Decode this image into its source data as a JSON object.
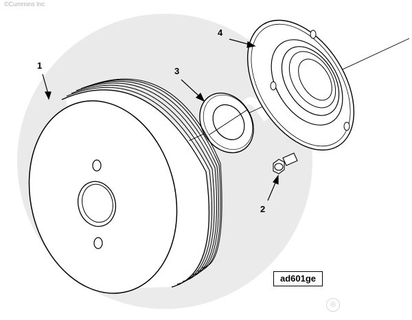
{
  "copyright": "©Cummins Inc",
  "watermark": {
    "text": "Cummins"
  },
  "callouts": [
    {
      "id": "pulley",
      "label": "1"
    },
    {
      "id": "capscrew",
      "label": "2"
    },
    {
      "id": "washer",
      "label": "3"
    },
    {
      "id": "gasket-plate",
      "label": "4"
    }
  ],
  "drawing_code": "ad601ge",
  "registered_mark": "®"
}
